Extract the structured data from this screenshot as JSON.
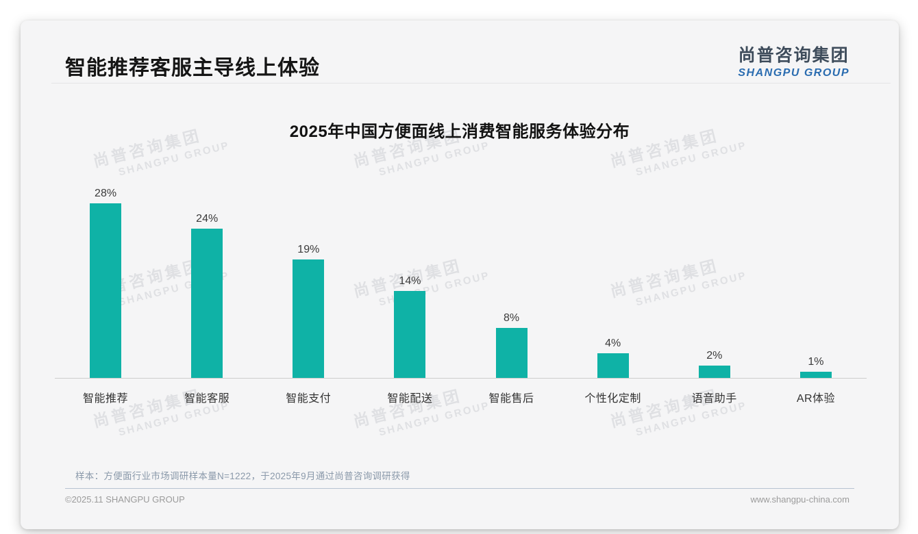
{
  "header": {
    "title": "智能推荐客服主导线上体验",
    "logo_cn": "尚普咨询集团",
    "logo_en": "SHANGPU GROUP"
  },
  "chart_data": {
    "type": "bar",
    "title": "2025年中国方便面线上消费智能服务体验分布",
    "categories": [
      "智能推荐",
      "智能客服",
      "智能支付",
      "智能配送",
      "智能售后",
      "个性化定制",
      "语音助手",
      "AR体验"
    ],
    "values": [
      28,
      24,
      19,
      14,
      8,
      4,
      2,
      1
    ],
    "value_labels": [
      "28%",
      "24%",
      "19%",
      "14%",
      "8%",
      "4%",
      "2%",
      "1%"
    ],
    "unit": "%",
    "ylim": [
      0,
      30
    ],
    "grid": false,
    "legend": "none",
    "bar_color": "#0fb2a6",
    "axis_color": "#cccccc"
  },
  "watermark": {
    "line1": "尚普咨询集团",
    "line2": "SHANGPU GROUP"
  },
  "footnote": "样本：方便面行业市场调研样本量N=1222，于2025年9月通过尚普咨询调研获得",
  "footer": {
    "copyright": "©2025.11 SHANGPU GROUP",
    "website": "www.shangpu-china.com"
  }
}
